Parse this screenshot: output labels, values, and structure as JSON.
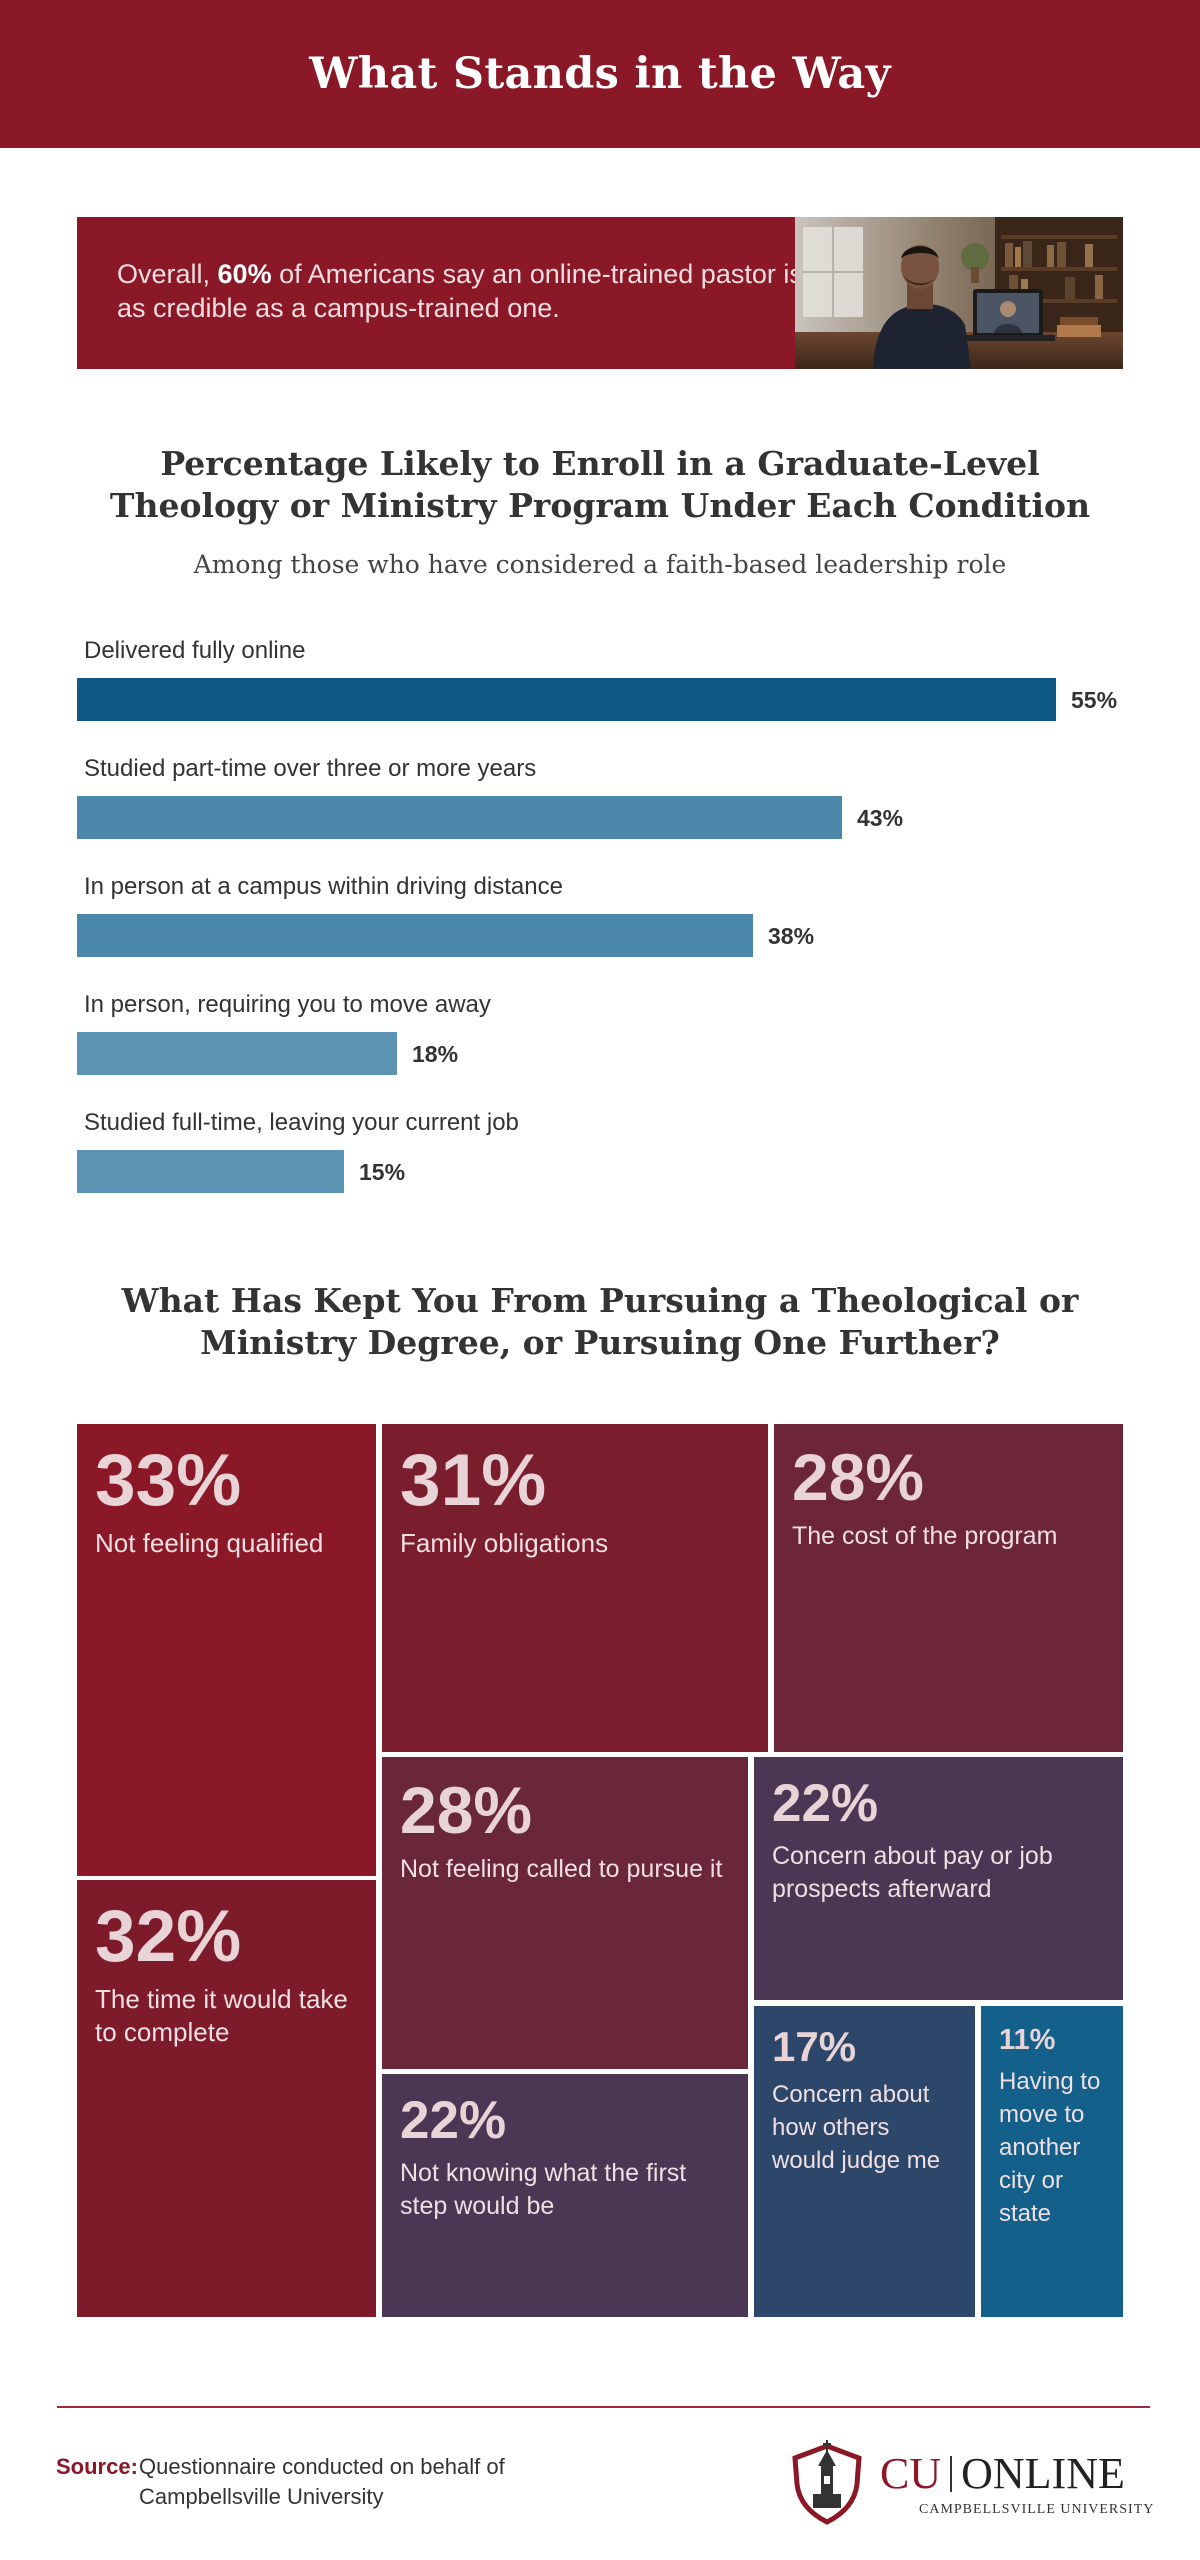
{
  "header": {
    "title": "What Stands in the Way"
  },
  "banner": {
    "text_before": "Overall, ",
    "highlight": "60%",
    "text_after": " of Americans say an online-trained pastor is as credible as a campus-trained one."
  },
  "enroll_section": {
    "title_line1": "Percentage Likely to Enroll in a Graduate-Level",
    "title_line2": "Theology or Ministry Program Under Each Condition",
    "subtitle": "Among those who have considered a faith-based leadership role"
  },
  "barriers_section": {
    "title_line1": "What Has Kept You From Pursuing a Theological or",
    "title_line2": "Ministry Degree, or Pursuing One Further?"
  },
  "chart_data": [
    {
      "type": "bar",
      "orientation": "horizontal",
      "categories": [
        "Delivered fully online",
        "Studied part-time over three or more years",
        "In person at a campus within driving distance",
        "In person, requiring you to move away",
        "Studied full-time, leaving your current job"
      ],
      "values": [
        55,
        43,
        38,
        18,
        15
      ],
      "value_labels": [
        "55%",
        "43%",
        "38%",
        "18%",
        "15%"
      ],
      "colors": [
        "#0f5a84",
        "#4a87a9",
        "#4a87a9",
        "#5b93b3",
        "#5b93b3"
      ]
    },
    {
      "type": "treemap",
      "items": [
        {
          "value": 33,
          "label": "33%",
          "text": "Not feeling qualified",
          "color": "#8a1827"
        },
        {
          "value": 32,
          "label": "32%",
          "text": "The time it would take to complete",
          "color": "#7e1b2b"
        },
        {
          "value": 31,
          "label": "31%",
          "text": "Family obligations",
          "color": "#7a1d2d"
        },
        {
          "value": 28,
          "label": "28%",
          "text": "The cost of the program",
          "color": "#6c2638"
        },
        {
          "value": 28,
          "label": "28%",
          "text": "Not feeling called to pursue it",
          "color": "#6a2739"
        },
        {
          "value": 22,
          "label": "22%",
          "text": "Concern about pay or job prospects afterward",
          "color": "#4b3653"
        },
        {
          "value": 22,
          "label": "22%",
          "text": "Not knowing what the first step would be",
          "color": "#4b3653"
        },
        {
          "value": 17,
          "label": "17%",
          "text": "Concern about how others would judge me",
          "color": "#2c4769"
        },
        {
          "value": 11,
          "label": "11%",
          "text": "Having to move to another city or state",
          "color": "#13608a"
        }
      ]
    }
  ],
  "footer": {
    "source_label": "Source:",
    "source_line1": "Questionnaire conducted on behalf of",
    "source_line2": "Campbellsville University",
    "logo_cu": "CU",
    "logo_online": "ONLINE",
    "logo_sub": "CAMPBELLSVILLE UNIVERSITY"
  }
}
